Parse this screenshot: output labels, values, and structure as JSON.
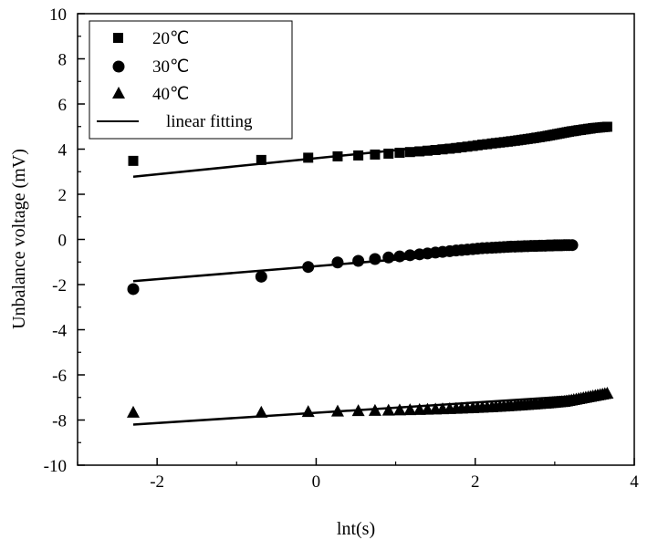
{
  "chart_data": {
    "type": "scatter",
    "title": "",
    "xlabel": "lnt(s)",
    "ylabel": "Unbalance voltage (mV)",
    "xlim": [
      -3,
      4
    ],
    "ylim": [
      -10,
      10
    ],
    "xticks": [
      "-2",
      "0",
      "2",
      "4"
    ],
    "yticks": [
      "-10",
      "-8",
      "-6",
      "-4",
      "-2",
      "0",
      "2",
      "4",
      "6",
      "8",
      "10"
    ],
    "legend": {
      "placement": "top-left"
    },
    "series": [
      {
        "name": "20℃",
        "marker": "square",
        "x": [
          -2.3,
          -0.69,
          -0.1,
          0.27,
          0.53,
          0.74,
          0.91,
          1.05,
          1.18,
          1.3,
          1.4,
          1.5,
          1.59,
          1.68,
          1.76,
          1.83,
          1.9,
          1.97,
          2.03,
          2.09,
          2.15,
          2.21,
          2.26,
          2.31,
          2.36,
          2.41,
          2.45,
          2.5,
          2.54,
          2.58,
          2.62,
          2.66,
          2.7,
          2.74,
          2.77,
          2.81,
          2.84,
          2.88,
          2.91,
          2.94,
          2.97,
          3.0,
          3.03,
          3.06,
          3.09,
          3.12,
          3.15,
          3.18,
          3.21,
          3.24,
          3.27,
          3.3,
          3.33,
          3.36,
          3.39,
          3.42,
          3.45,
          3.48,
          3.51,
          3.54,
          3.57,
          3.6,
          3.63,
          3.66
        ],
        "y": [
          3.48,
          3.52,
          3.62,
          3.68,
          3.72,
          3.76,
          3.8,
          3.84,
          3.87,
          3.9,
          3.93,
          3.96,
          3.99,
          4.02,
          4.05,
          4.08,
          4.11,
          4.14,
          4.17,
          4.2,
          4.22,
          4.25,
          4.27,
          4.29,
          4.31,
          4.33,
          4.35,
          4.37,
          4.39,
          4.41,
          4.43,
          4.45,
          4.47,
          4.49,
          4.51,
          4.53,
          4.55,
          4.57,
          4.59,
          4.61,
          4.63,
          4.65,
          4.67,
          4.69,
          4.71,
          4.73,
          4.75,
          4.77,
          4.79,
          4.8,
          4.82,
          4.84,
          4.85,
          4.87,
          4.88,
          4.9,
          4.91,
          4.93,
          4.94,
          4.95,
          4.96,
          4.97,
          4.98,
          4.99
        ]
      },
      {
        "name": "30℃",
        "marker": "circle",
        "x": [
          -2.3,
          -0.69,
          -0.1,
          0.27,
          0.53,
          0.74,
          0.91,
          1.05,
          1.18,
          1.3,
          1.4,
          1.5,
          1.59,
          1.68,
          1.76,
          1.83,
          1.9,
          1.97,
          2.03,
          2.09,
          2.15,
          2.21,
          2.26,
          2.31,
          2.36,
          2.41,
          2.45,
          2.5,
          2.54,
          2.58,
          2.62,
          2.66,
          2.7,
          2.74,
          2.77,
          2.81,
          2.84,
          2.88,
          2.91,
          2.94,
          2.97,
          3.0,
          3.03,
          3.06,
          3.09,
          3.12,
          3.15,
          3.18,
          3.22
        ],
        "y": [
          -2.2,
          -1.65,
          -1.22,
          -1.02,
          -0.95,
          -0.87,
          -0.8,
          -0.75,
          -0.7,
          -0.66,
          -0.62,
          -0.58,
          -0.55,
          -0.52,
          -0.49,
          -0.47,
          -0.45,
          -0.43,
          -0.41,
          -0.39,
          -0.38,
          -0.37,
          -0.36,
          -0.35,
          -0.34,
          -0.33,
          -0.32,
          -0.32,
          -0.31,
          -0.31,
          -0.3,
          -0.3,
          -0.29,
          -0.29,
          -0.29,
          -0.28,
          -0.28,
          -0.28,
          -0.27,
          -0.27,
          -0.27,
          -0.26,
          -0.26,
          -0.26,
          -0.26,
          -0.25,
          -0.25,
          -0.25,
          -0.25
        ]
      },
      {
        "name": "40℃",
        "marker": "triangle",
        "x": [
          -2.3,
          -0.69,
          -0.1,
          0.27,
          0.53,
          0.74,
          0.91,
          1.05,
          1.18,
          1.3,
          1.4,
          1.5,
          1.59,
          1.68,
          1.76,
          1.83,
          1.9,
          1.97,
          2.03,
          2.09,
          2.15,
          2.21,
          2.26,
          2.31,
          2.36,
          2.41,
          2.45,
          2.5,
          2.54,
          2.58,
          2.62,
          2.66,
          2.7,
          2.74,
          2.77,
          2.81,
          2.84,
          2.88,
          2.91,
          2.94,
          2.97,
          3.0,
          3.03,
          3.06,
          3.09,
          3.12,
          3.15,
          3.18,
          3.21,
          3.24,
          3.27,
          3.3,
          3.33,
          3.36,
          3.39,
          3.42,
          3.45,
          3.48,
          3.51,
          3.54,
          3.57,
          3.6,
          3.63,
          3.66
        ],
        "y": [
          -7.65,
          -7.65,
          -7.62,
          -7.6,
          -7.58,
          -7.57,
          -7.56,
          -7.55,
          -7.54,
          -7.53,
          -7.52,
          -7.51,
          -7.5,
          -7.49,
          -7.48,
          -7.47,
          -7.46,
          -7.45,
          -7.44,
          -7.43,
          -7.42,
          -7.41,
          -7.4,
          -7.39,
          -7.38,
          -7.37,
          -7.36,
          -7.35,
          -7.34,
          -7.33,
          -7.32,
          -7.31,
          -7.3,
          -7.29,
          -7.28,
          -7.27,
          -7.26,
          -7.25,
          -7.24,
          -7.23,
          -7.22,
          -7.21,
          -7.2,
          -7.19,
          -7.18,
          -7.17,
          -7.15,
          -7.13,
          -7.11,
          -7.09,
          -7.07,
          -7.05,
          -7.03,
          -7.01,
          -6.99,
          -6.97,
          -6.95,
          -6.93,
          -6.91,
          -6.89,
          -6.87,
          -6.85,
          -6.83,
          -6.81
        ]
      }
    ],
    "fits": [
      {
        "name": "linear fitting",
        "x": [
          -2.3,
          3.66
        ],
        "y": [
          2.78,
          4.9
        ]
      },
      {
        "name": "linear fitting",
        "x": [
          -2.3,
          3.22
        ],
        "y": [
          -1.85,
          -0.25
        ]
      },
      {
        "name": "linear fitting",
        "x": [
          -2.3,
          3.66
        ],
        "y": [
          -8.2,
          -6.85
        ]
      }
    ],
    "legend_fit_label": "linear fitting"
  }
}
